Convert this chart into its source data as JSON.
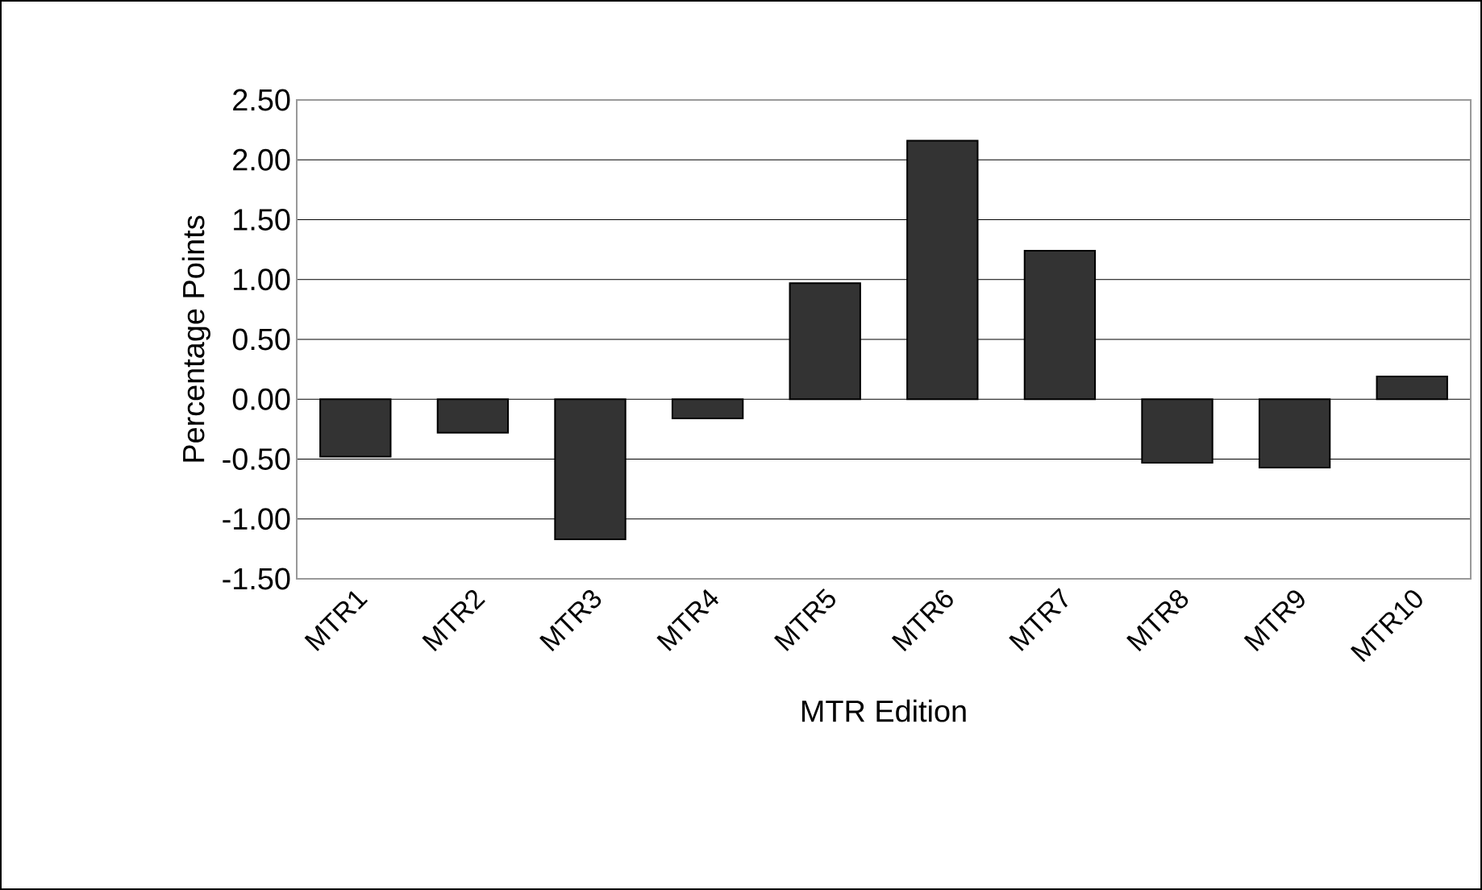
{
  "chart_data": {
    "type": "bar",
    "xlabel": "MTR Edition",
    "ylabel": "Percentage Points",
    "categories": [
      "MTR1",
      "MTR2",
      "MTR3",
      "MTR4",
      "MTR5",
      "MTR6",
      "MTR7",
      "MTR8",
      "MTR9",
      "MTR10"
    ],
    "values": [
      -0.48,
      -0.28,
      -1.17,
      -0.16,
      0.97,
      2.16,
      1.24,
      -0.53,
      -0.57,
      0.19
    ],
    "color": "#333333",
    "ylim": [
      -1.5,
      2.5
    ],
    "yticks": [
      {
        "value": -1.5,
        "label": "-1.50"
      },
      {
        "value": -1,
        "label": "-1.00"
      },
      {
        "value": -0.5,
        "label": "-0.50"
      },
      {
        "value": 0,
        "label": "0.00"
      },
      {
        "value": 0.5,
        "label": "0.50"
      },
      {
        "value": 1,
        "label": "1.00"
      },
      {
        "value": 1.5,
        "label": "1.50"
      },
      {
        "value": 2,
        "label": "2.00"
      },
      {
        "value": 2.5,
        "label": "2.50"
      }
    ],
    "grid": "y"
  }
}
